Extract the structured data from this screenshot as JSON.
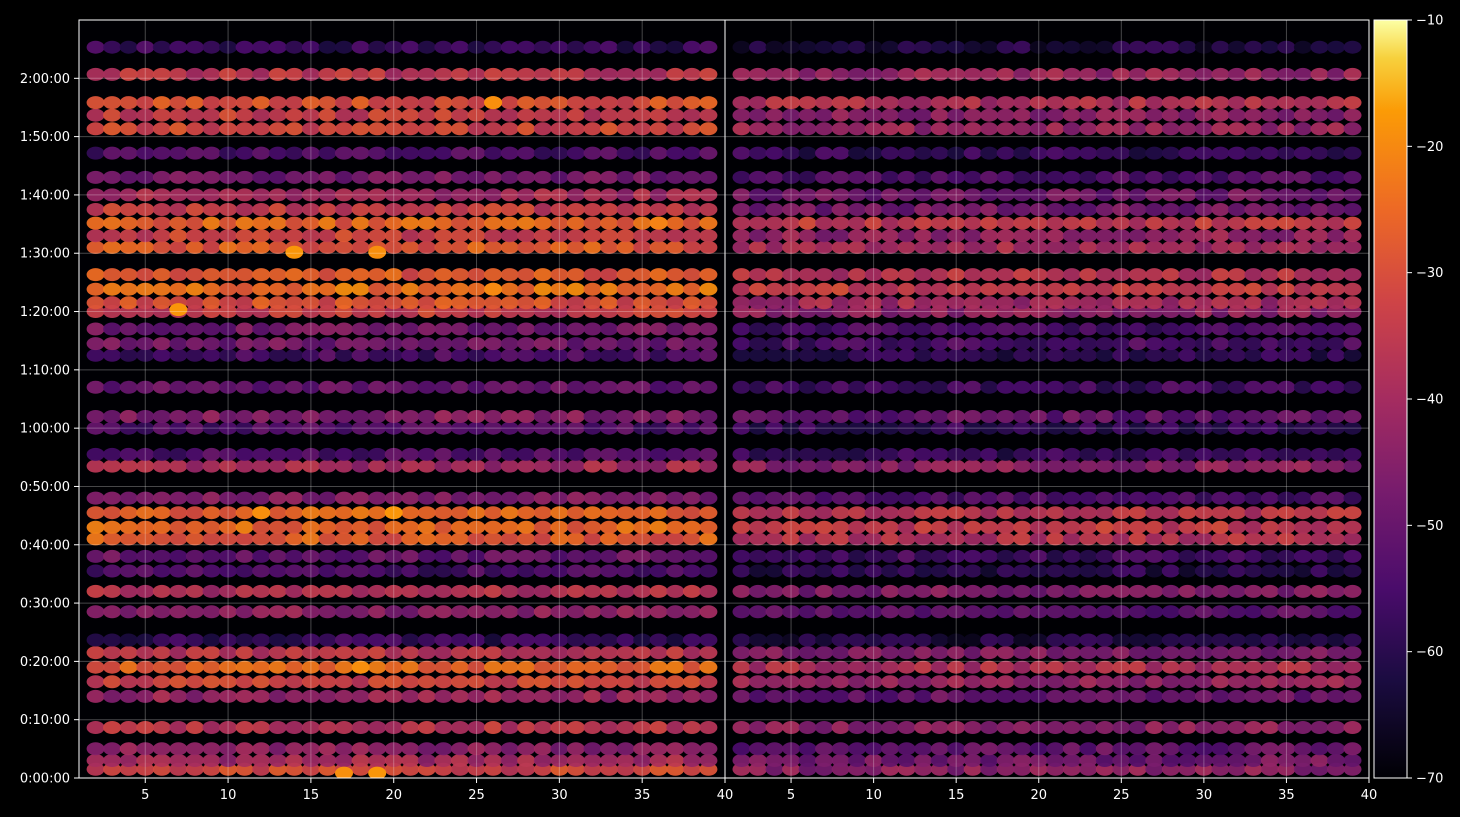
{
  "chart_data": {
    "type": "heatmap",
    "title": "",
    "xlabel": "",
    "ylabel": "",
    "grid": true,
    "panels": [
      {
        "name": "",
        "x_range": [
          1,
          40
        ],
        "x_ticks": [
          5,
          10,
          15,
          20,
          25,
          30,
          35,
          40
        ]
      },
      {
        "name": "",
        "x_range": [
          1,
          40
        ],
        "x_ticks": [
          5,
          10,
          15,
          20,
          25,
          30,
          35,
          40
        ]
      }
    ],
    "x_tick_labels": [
      "5",
      "10",
      "15",
      "20",
      "25",
      "30",
      "35",
      "40"
    ],
    "y_range_seconds": [
      0,
      7800
    ],
    "y_ticks": [
      {
        "label": "0:00:00",
        "seconds": 0
      },
      {
        "label": "0:10:00",
        "seconds": 600
      },
      {
        "label": "0:20:00",
        "seconds": 1200
      },
      {
        "label": "0:30:00",
        "seconds": 1800
      },
      {
        "label": "0:40:00",
        "seconds": 2400
      },
      {
        "label": "0:50:00",
        "seconds": 3000
      },
      {
        "label": "1:00:00",
        "seconds": 3600
      },
      {
        "label": "1:10:00",
        "seconds": 4200
      },
      {
        "label": "1:20:00",
        "seconds": 4800
      },
      {
        "label": "1:30:00",
        "seconds": 5400
      },
      {
        "label": "1:40:00",
        "seconds": 6000
      },
      {
        "label": "1:50:00",
        "seconds": 6600
      },
      {
        "label": "2:00:00",
        "seconds": 7200
      }
    ],
    "colorbar": {
      "colormap": "inferno",
      "range": [
        -70,
        -10
      ],
      "ticks": [
        -10,
        -20,
        -30,
        -40,
        -50,
        -60,
        -70
      ],
      "tick_labels": [
        "−10",
        "−20",
        "−30",
        "−40",
        "−50",
        "−60",
        "−70"
      ]
    },
    "bands": [
      {
        "t": 90,
        "value": -32,
        "p2": -44
      },
      {
        "t": 180,
        "value": -40,
        "p2": -48
      },
      {
        "t": 300,
        "value": -44,
        "p2": -50
      },
      {
        "t": 520,
        "value": -36,
        "p2": -44
      },
      {
        "t": 840,
        "value": -42,
        "p2": -50
      },
      {
        "t": 990,
        "value": -33,
        "p2": -42
      },
      {
        "t": 1140,
        "value": -26,
        "p2": -38
      },
      {
        "t": 1290,
        "value": -36,
        "p2": -46
      },
      {
        "t": 1420,
        "value": -58,
        "p2": -62
      },
      {
        "t": 1710,
        "value": -44,
        "p2": -52
      },
      {
        "t": 1920,
        "value": -38,
        "p2": -46
      },
      {
        "t": 2130,
        "value": -55,
        "p2": -60
      },
      {
        "t": 2280,
        "value": -50,
        "p2": -56
      },
      {
        "t": 2460,
        "value": -27,
        "p2": -37
      },
      {
        "t": 2580,
        "value": -25,
        "p2": -35
      },
      {
        "t": 2730,
        "value": -26,
        "p2": -36
      },
      {
        "t": 2880,
        "value": -46,
        "p2": -54
      },
      {
        "t": 3210,
        "value": -40,
        "p2": -44
      },
      {
        "t": 3330,
        "value": -54,
        "p2": -58
      },
      {
        "t": 3600,
        "value": -54,
        "p2": -58
      },
      {
        "t": 3720,
        "value": -45,
        "p2": -50
      },
      {
        "t": 4020,
        "value": -50,
        "p2": -56
      },
      {
        "t": 4350,
        "value": -55,
        "p2": -60
      },
      {
        "t": 4470,
        "value": -48,
        "p2": -55
      },
      {
        "t": 4620,
        "value": -48,
        "p2": -55
      },
      {
        "t": 4800,
        "value": -34,
        "p2": -44
      },
      {
        "t": 4890,
        "value": -30,
        "p2": -40
      },
      {
        "t": 5030,
        "value": -24,
        "p2": -34
      },
      {
        "t": 5180,
        "value": -28,
        "p2": -37
      },
      {
        "t": 5460,
        "value": -28,
        "p2": -40
      },
      {
        "t": 5580,
        "value": -33,
        "p2": -43
      },
      {
        "t": 5710,
        "value": -26,
        "p2": -35
      },
      {
        "t": 5850,
        "value": -34,
        "p2": -48
      },
      {
        "t": 6000,
        "value": -40,
        "p2": -48
      },
      {
        "t": 6180,
        "value": -48,
        "p2": -54
      },
      {
        "t": 6430,
        "value": -54,
        "p2": -58
      },
      {
        "t": 6680,
        "value": -32,
        "p2": -42
      },
      {
        "t": 6820,
        "value": -34,
        "p2": -44
      },
      {
        "t": 6950,
        "value": -30,
        "p2": -38
      },
      {
        "t": 7240,
        "value": -36,
        "p2": -42
      },
      {
        "t": 7520,
        "value": -58,
        "p2": -62
      }
    ],
    "annotations": [
      {
        "panel": 0,
        "x": 7,
        "t": 4820,
        "value": -18
      },
      {
        "panel": 0,
        "x": 14,
        "t": 5410,
        "value": -18
      },
      {
        "panel": 0,
        "x": 19,
        "t": 5410,
        "value": -19
      },
      {
        "panel": 0,
        "x": 12,
        "t": 2730,
        "value": -19
      },
      {
        "panel": 0,
        "x": 20,
        "t": 2730,
        "value": -18
      },
      {
        "panel": 0,
        "x": 17,
        "t": 50,
        "value": -19
      },
      {
        "panel": 0,
        "x": 19,
        "t": 50,
        "value": -18
      },
      {
        "panel": 0,
        "x": 18,
        "t": 1140,
        "value": -19
      },
      {
        "panel": 0,
        "x": 26,
        "t": 5030,
        "value": -20
      },
      {
        "panel": 0,
        "x": 26,
        "t": 6950,
        "value": -19
      },
      {
        "panel": 0,
        "x": 36,
        "t": 5710,
        "value": -21
      }
    ]
  }
}
